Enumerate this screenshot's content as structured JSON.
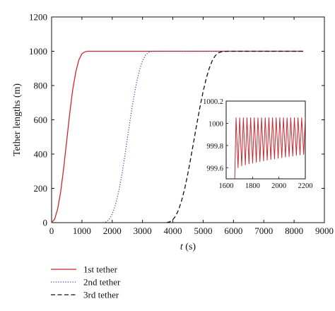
{
  "chart_data": [
    {
      "type": "line",
      "xlabel_italic": "t",
      "xlabel_unit": "(s)",
      "ylabel": "Tether lengths (m)",
      "xlim": [
        0,
        9000
      ],
      "ylim": [
        0,
        1200
      ],
      "xticks": [
        0,
        1000,
        2000,
        3000,
        4000,
        5000,
        6000,
        7000,
        8000,
        9000
      ],
      "yticks": [
        0,
        200,
        400,
        600,
        800,
        1000,
        1200
      ],
      "grid": false,
      "legend_position": "bottom-left, below plot",
      "series": [
        {
          "name": "1st tether",
          "color": "#c8282f",
          "style": "solid",
          "x": [
            0,
            100,
            200,
            300,
            400,
            500,
            600,
            700,
            800,
            900,
            1000,
            1100,
            1200,
            1300,
            1400,
            1500,
            1600,
            1800,
            2500,
            4000,
            6000,
            8300
          ],
          "y": [
            0,
            20,
            80,
            180,
            320,
            480,
            640,
            780,
            880,
            950,
            985,
            997,
            1000,
            1000,
            1000,
            1000,
            1000,
            1000,
            1000,
            1000,
            1000,
            1000
          ]
        },
        {
          "name": "2nd tether",
          "color": "#3a3ab0",
          "style": "dotted",
          "x": [
            1700,
            1800,
            1900,
            2000,
            2100,
            2200,
            2300,
            2400,
            2500,
            2600,
            2700,
            2800,
            2900,
            3000,
            3100,
            3200,
            3300,
            3400,
            3500,
            4000,
            6000,
            8300
          ],
          "y": [
            0,
            5,
            20,
            50,
            100,
            170,
            260,
            370,
            490,
            610,
            720,
            815,
            890,
            945,
            978,
            994,
            999,
            1000,
            1000,
            1000,
            1000,
            1000
          ]
        },
        {
          "name": "3rd tether",
          "color": "#111111",
          "style": "dashed",
          "x": [
            3800,
            3900,
            4000,
            4100,
            4200,
            4300,
            4400,
            4500,
            4600,
            4700,
            4800,
            4900,
            5000,
            5100,
            5200,
            5300,
            5400,
            5500,
            5600,
            5800,
            6000,
            7000,
            8300
          ],
          "y": [
            0,
            5,
            18,
            40,
            80,
            135,
            205,
            290,
            385,
            485,
            585,
            680,
            765,
            840,
            900,
            945,
            974,
            990,
            997,
            1000,
            1000,
            1000,
            1000
          ]
        }
      ]
    },
    {
      "type": "line",
      "inset": true,
      "xlim": [
        1600,
        2200
      ],
      "ylim": [
        999.5,
        1000.2
      ],
      "xticks": [
        1600,
        1800,
        2000,
        2200
      ],
      "yticks": [
        999.6,
        999.8,
        1000,
        1000.2
      ],
      "ytick_labels": [
        "999.6",
        "999.8",
        "1000",
        "1000.2"
      ],
      "series": [
        {
          "color": "#c8282f",
          "style": "solid",
          "oscillation": {
            "x_start": 1665,
            "x_end": 2200,
            "rise_start_y": 999.5,
            "first_peak_x": 1675,
            "cycles": 19,
            "peak_y": 1000.05,
            "trough_start_y": 999.6,
            "trough_end_y": 999.72
          }
        }
      ]
    }
  ],
  "legend": [
    {
      "label": "1st tether",
      "color": "#c8282f",
      "style": "solid"
    },
    {
      "label": "2nd tether",
      "color": "#3a3ab0",
      "style": "dotted"
    },
    {
      "label": "3rd tether",
      "color": "#111111",
      "style": "dashed"
    }
  ]
}
